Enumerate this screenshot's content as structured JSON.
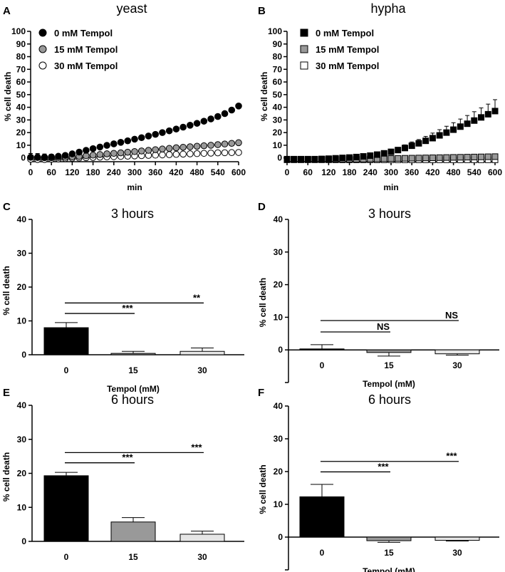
{
  "chart_data": [
    {
      "panel": "A",
      "type": "scatter",
      "title": "yeast",
      "xlabel": "min",
      "ylabel": "% cell death",
      "xlim": [
        0,
        600
      ],
      "ylim": [
        -3,
        100
      ],
      "xticks": [
        0,
        60,
        120,
        180,
        240,
        300,
        360,
        420,
        480,
        540,
        600
      ],
      "yticks": [
        0,
        10,
        20,
        30,
        40,
        50,
        60,
        70,
        80,
        90,
        100
      ],
      "legend_position": "top-left",
      "x": [
        0,
        20,
        40,
        60,
        80,
        100,
        120,
        140,
        160,
        180,
        200,
        220,
        240,
        260,
        280,
        300,
        320,
        340,
        360,
        380,
        400,
        420,
        440,
        460,
        480,
        500,
        520,
        540,
        560,
        580,
        600
      ],
      "series": [
        {
          "name": "0 mM Tempol",
          "marker": "circle",
          "fill": "#000000",
          "values": [
            0.5,
            0.5,
            0.6,
            0.8,
            1.3,
            2.0,
            3.2,
            4.6,
            6.0,
            7.3,
            8.6,
            9.9,
            11.1,
            12.3,
            13.5,
            14.8,
            16.0,
            17.3,
            18.6,
            20.0,
            21.4,
            22.8,
            24.3,
            25.8,
            27.3,
            29.0,
            30.8,
            32.7,
            35.0,
            37.8,
            41.0
          ],
          "error": [
            3,
            3,
            2.5,
            2,
            1.5,
            1,
            1,
            1,
            1,
            1,
            1,
            1,
            1,
            1,
            1,
            1,
            1,
            1,
            1,
            1,
            1,
            1,
            1,
            1,
            1,
            1,
            1,
            1,
            1,
            1,
            1
          ]
        },
        {
          "name": "15 mM Tempol",
          "marker": "circle",
          "fill": "#999999",
          "values": [
            0.5,
            0.3,
            0.2,
            0.2,
            0.3,
            0.5,
            0.8,
            1.2,
            1.7,
            2.2,
            2.7,
            3.2,
            3.6,
            4.0,
            4.5,
            5.0,
            5.5,
            6.0,
            6.5,
            7.0,
            7.5,
            8.0,
            8.4,
            8.8,
            9.2,
            9.6,
            10.0,
            10.5,
            11.0,
            11.5,
            12.0
          ],
          "error": [
            3,
            2.5,
            2,
            1.5,
            1,
            1,
            1,
            1,
            1,
            1,
            1,
            1,
            1,
            1,
            1,
            1,
            1,
            1,
            1,
            1,
            1,
            1,
            1,
            1,
            1,
            1,
            1,
            1,
            1,
            1,
            1
          ]
        },
        {
          "name": "30 mM Tempol",
          "marker": "circle",
          "fill": "#ffffff",
          "values": [
            -1.0,
            -1.2,
            -1.2,
            -1.0,
            -0.8,
            -0.5,
            -0.2,
            0.0,
            0.2,
            0.4,
            0.6,
            0.8,
            1.0,
            1.2,
            1.4,
            1.6,
            1.8,
            2.0,
            2.2,
            2.4,
            2.6,
            2.8,
            3.0,
            3.2,
            3.4,
            3.6,
            3.8,
            4.0,
            4.1,
            4.2,
            4.3
          ],
          "error": [
            2,
            2,
            1.5,
            1,
            1,
            1,
            1,
            1,
            1,
            1,
            1,
            1,
            1,
            1,
            1,
            1,
            1,
            1,
            1,
            1,
            1,
            1,
            1,
            1,
            1,
            1,
            1,
            1,
            1,
            1,
            1
          ]
        }
      ]
    },
    {
      "panel": "B",
      "type": "scatter",
      "title": "hypha",
      "xlabel": "min",
      "ylabel": "% cell death",
      "xlim": [
        0,
        600
      ],
      "ylim": [
        -3,
        100
      ],
      "xticks": [
        0,
        60,
        120,
        180,
        240,
        300,
        360,
        420,
        480,
        540,
        600
      ],
      "yticks": [
        0,
        10,
        20,
        30,
        40,
        50,
        60,
        70,
        80,
        90,
        100
      ],
      "legend_position": "top-left",
      "x": [
        0,
        20,
        40,
        60,
        80,
        100,
        120,
        140,
        160,
        180,
        200,
        220,
        240,
        260,
        280,
        300,
        320,
        340,
        360,
        380,
        400,
        420,
        440,
        460,
        480,
        500,
        520,
        540,
        560,
        580,
        600
      ],
      "series": [
        {
          "name": "0 mM Tempol",
          "marker": "square",
          "fill": "#000000",
          "values": [
            -1.0,
            -1.0,
            -1.0,
            -1.0,
            -1.0,
            -0.8,
            -0.6,
            -0.3,
            0.0,
            0.3,
            0.7,
            1.2,
            1.8,
            2.6,
            3.6,
            4.8,
            6.2,
            7.8,
            9.6,
            11.5,
            13.5,
            15.6,
            17.8,
            20.0,
            22.3,
            24.7,
            27.0,
            29.5,
            32.0,
            34.5,
            37.0
          ],
          "error": [
            1,
            1,
            1,
            1,
            1,
            1,
            1,
            1,
            1,
            1,
            1,
            1,
            1,
            1,
            1.5,
            2,
            2,
            2.5,
            3,
            3,
            3.5,
            4,
            4.5,
            5,
            5.5,
            6,
            6.5,
            7,
            7.5,
            8,
            9
          ]
        },
        {
          "name": "15 mM Tempol",
          "marker": "square",
          "fill": "#999999",
          "values": [
            -1.0,
            -1.0,
            -1.0,
            -1.0,
            -1.0,
            -1.0,
            -1.0,
            -1.0,
            -1.0,
            -1.0,
            -1.0,
            -0.9,
            -0.8,
            -0.7,
            -0.6,
            -0.5,
            -0.4,
            -0.3,
            -0.2,
            -0.1,
            0.0,
            0.1,
            0.2,
            0.3,
            0.4,
            0.5,
            0.6,
            0.7,
            0.8,
            0.9,
            1.0
          ],
          "error": [
            0.5,
            0.5,
            0.5,
            0.5,
            0.5,
            0.5,
            0.5,
            0.5,
            0.5,
            0.5,
            0.5,
            0.5,
            0.5,
            0.5,
            0.5,
            0.5,
            0.5,
            0.5,
            0.5,
            0.5,
            0.5,
            0.5,
            0.5,
            0.5,
            0.5,
            0.5,
            0.5,
            0.5,
            0.5,
            0.5,
            0.5
          ]
        },
        {
          "name": "30 mM Tempol",
          "marker": "square",
          "fill": "#ffffff",
          "values": [
            -1.5,
            -1.5,
            -1.5,
            -1.5,
            -1.5,
            -1.5,
            -1.5,
            -1.5,
            -1.5,
            -1.5,
            -1.5,
            -1.5,
            -1.5,
            -1.5,
            -1.5,
            -1.5,
            -1.5,
            -1.5,
            -1.5,
            -1.5,
            -1.5,
            -1.5,
            -1.5,
            -1.5,
            -1.5,
            -1.5,
            -1.5,
            -1.5,
            -1.5,
            -1.5,
            -1.5
          ],
          "error": [
            0.5,
            0.5,
            0.5,
            0.5,
            0.5,
            0.5,
            0.5,
            0.5,
            0.5,
            0.5,
            0.5,
            0.5,
            0.5,
            0.5,
            0.5,
            0.5,
            0.5,
            0.5,
            0.5,
            0.5,
            0.5,
            0.5,
            0.5,
            0.5,
            0.5,
            0.5,
            0.5,
            0.5,
            0.5,
            0.5,
            0.5
          ]
        }
      ]
    },
    {
      "panel": "C",
      "type": "bar",
      "title": "3 hours",
      "xlabel": "Tempol (mM)",
      "ylabel": "% cell death",
      "ylim": [
        0,
        40
      ],
      "yticks": [
        0,
        10,
        20,
        30,
        40
      ],
      "categories": [
        "0",
        "15",
        "30"
      ],
      "values": [
        8.0,
        0.4,
        1.0
      ],
      "errors": [
        1.5,
        0.6,
        1.0
      ],
      "colors": [
        "#000000",
        "#999999",
        "#e6e6e6"
      ],
      "annotations": [
        {
          "from": "0",
          "to": "15",
          "y": 12.2,
          "label": "***"
        },
        {
          "from": "0",
          "to": "30",
          "y": 15.3,
          "label": "**"
        }
      ]
    },
    {
      "panel": "D",
      "type": "bar",
      "title": "3 hours",
      "xlabel": "Tempol (mM)",
      "ylabel": "% cell death",
      "ylim": [
        -10,
        40
      ],
      "yticks": [
        -10,
        0,
        10,
        20,
        30,
        40
      ],
      "ytick_labels_hidden": [
        -10
      ],
      "categories": [
        "0",
        "15",
        "30"
      ],
      "values": [
        0.3,
        -0.8,
        -1.2
      ],
      "errors": [
        1.3,
        1.1,
        0.4
      ],
      "colors": [
        "#000000",
        "#999999",
        "#e6e6e6"
      ],
      "annotations": [
        {
          "from": "0",
          "to": "15",
          "y": 5.5,
          "label": "NS"
        },
        {
          "from": "0",
          "to": "30",
          "y": 9.0,
          "label": "NS"
        }
      ]
    },
    {
      "panel": "E",
      "type": "bar",
      "title": "6 hours",
      "xlabel": "Tempol (mM)",
      "ylabel": "% cell death",
      "ylim": [
        0,
        40
      ],
      "yticks": [
        0,
        10,
        20,
        30,
        40
      ],
      "categories": [
        "0",
        "15",
        "30"
      ],
      "values": [
        19.3,
        5.7,
        2.1
      ],
      "errors": [
        1.0,
        1.3,
        0.9
      ],
      "colors": [
        "#000000",
        "#999999",
        "#e6e6e6"
      ],
      "annotations": [
        {
          "from": "0",
          "to": "15",
          "y": 23.1,
          "label": "***"
        },
        {
          "from": "0",
          "to": "30",
          "y": 26.1,
          "label": "***"
        }
      ]
    },
    {
      "panel": "F",
      "type": "bar",
      "title": "6 hours",
      "xlabel": "Tempol (mM)",
      "ylabel": "% cell death",
      "ylim": [
        -10,
        40
      ],
      "yticks": [
        -10,
        0,
        10,
        20,
        30,
        40
      ],
      "ytick_labels_hidden": [
        -10
      ],
      "categories": [
        "0",
        "15",
        "30"
      ],
      "values": [
        12.3,
        -1.1,
        -1.0
      ],
      "errors": [
        3.8,
        0.5,
        0.2
      ],
      "colors": [
        "#000000",
        "#999999",
        "#e6e6e6"
      ],
      "annotations": [
        {
          "from": "0",
          "to": "15",
          "y": 19.9,
          "label": "***"
        },
        {
          "from": "0",
          "to": "30",
          "y": 23.1,
          "label": "***"
        }
      ]
    }
  ]
}
